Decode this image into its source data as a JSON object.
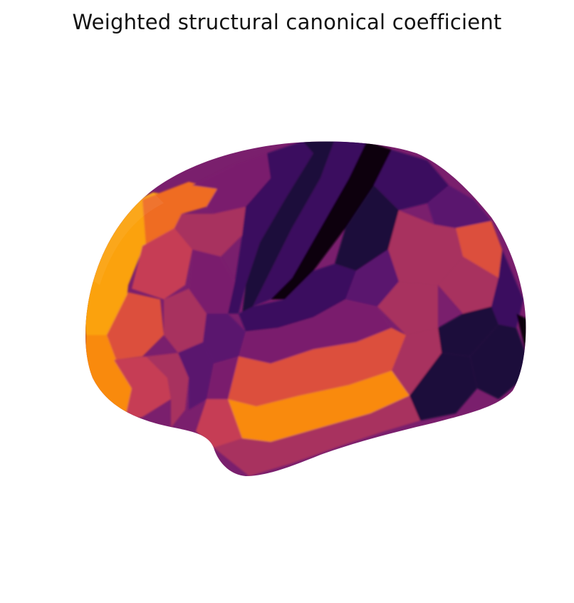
{
  "figure": {
    "title": "Weighted structural canonical coefficient",
    "colormap": "inferno",
    "background": "#ffffff",
    "view": "lateral",
    "hemisphere_rendering": "inflated cortical surface",
    "colors": {
      "very_dark": "#08030f",
      "dark": "#1f0c3b",
      "deep_purple": "#3a0f5e",
      "purple": "#5a136e",
      "magenta": "#7a1f6d",
      "crimson": "#a8305e",
      "red": "#c63e55",
      "red_orange": "#dc4f3d",
      "orange": "#ef6c23",
      "bright_orange": "#f98a0e",
      "yellow_orange": "#fba20f"
    }
  }
}
